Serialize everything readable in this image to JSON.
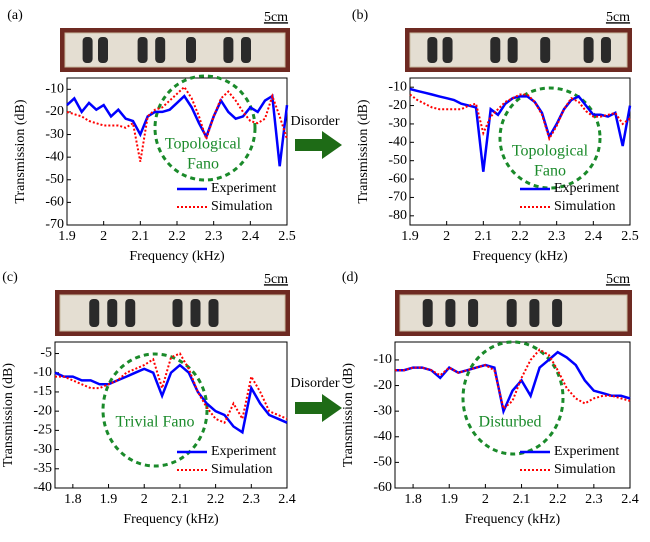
{
  "chart_data": [
    {
      "type": "line",
      "panel": "(a)",
      "scale_label": "5cm",
      "x_label": "Frequency (kHz)",
      "y_label": "Transmission (dB)",
      "annotation": [
        "Topological",
        "Fano"
      ],
      "legend": "lower right",
      "x": [
        1.9,
        1.92,
        1.94,
        1.96,
        1.98,
        2.0,
        2.02,
        2.04,
        2.06,
        2.08,
        2.1,
        2.12,
        2.14,
        2.16,
        2.18,
        2.2,
        2.22,
        2.24,
        2.26,
        2.28,
        2.3,
        2.32,
        2.34,
        2.36,
        2.38,
        2.4,
        2.42,
        2.44,
        2.46,
        2.48,
        2.5
      ],
      "series": [
        {
          "name": "Experiment",
          "color": "#0000ff",
          "values": [
            -17,
            -14,
            -20,
            -16,
            -19,
            -17,
            -22,
            -19,
            -23,
            -24,
            -30,
            -22,
            -20,
            -20,
            -19,
            -16,
            -13,
            -18,
            -25,
            -31,
            -22,
            -15,
            -20,
            -23,
            -22,
            -18,
            -20,
            -15,
            -13,
            -44,
            -17
          ]
        },
        {
          "name": "Simulation",
          "color": "#ff0000",
          "values": [
            -20,
            -21,
            -22,
            -24,
            -25,
            -26,
            -26,
            -26,
            -27,
            -25,
            -42,
            -22,
            -19,
            -18,
            -15,
            -12,
            -9,
            -14,
            -22,
            -32,
            -22,
            -14,
            -11,
            -15,
            -20,
            -24,
            -25,
            -23,
            -13,
            -22,
            -32
          ]
        }
      ],
      "xlim": [
        1.9,
        2.5
      ],
      "xticks": [
        1.9,
        2,
        2.1,
        2.2,
        2.3,
        2.4,
        2.5
      ],
      "ylim": [
        -70,
        -5
      ],
      "yticks": [
        -10,
        -20,
        -30,
        -40,
        -50,
        -60,
        -70
      ]
    },
    {
      "type": "line",
      "panel": "(b)",
      "scale_label": "5cm",
      "x_label": "Frequency (kHz)",
      "y_label": "Transmission (dB)",
      "annotation": [
        "Topological",
        "Fano"
      ],
      "legend": "lower right",
      "x": [
        1.9,
        1.92,
        1.94,
        1.96,
        1.98,
        2.0,
        2.02,
        2.04,
        2.06,
        2.08,
        2.1,
        2.12,
        2.14,
        2.16,
        2.18,
        2.2,
        2.22,
        2.24,
        2.26,
        2.28,
        2.3,
        2.32,
        2.34,
        2.36,
        2.38,
        2.4,
        2.42,
        2.44,
        2.46,
        2.48,
        2.5
      ],
      "series": [
        {
          "name": "Experiment",
          "color": "#0000ff",
          "values": [
            -11,
            -12,
            -13,
            -14,
            -15,
            -16,
            -17,
            -19,
            -20,
            -21,
            -56,
            -22,
            -25,
            -19,
            -16,
            -15,
            -15,
            -18,
            -24,
            -37,
            -30,
            -22,
            -17,
            -15,
            -20,
            -25,
            -25,
            -26,
            -24,
            -42,
            -20
          ]
        },
        {
          "name": "Simulation",
          "color": "#ff0000",
          "values": [
            -14,
            -17,
            -19,
            -21,
            -22,
            -22,
            -22,
            -22,
            -20,
            -19,
            -35,
            -26,
            -22,
            -18,
            -16,
            -14,
            -14,
            -18,
            -25,
            -38,
            -31,
            -22,
            -16,
            -18,
            -23,
            -26,
            -26,
            -25,
            -24,
            -30,
            -27
          ]
        }
      ],
      "xlim": [
        1.9,
        2.5
      ],
      "xticks": [
        1.9,
        2,
        2.1,
        2.2,
        2.3,
        2.4,
        2.5
      ],
      "ylim": [
        -85,
        -5
      ],
      "yticks": [
        -10,
        -20,
        -30,
        -40,
        -50,
        -60,
        -70,
        -80
      ]
    },
    {
      "type": "line",
      "panel": "(c)",
      "scale_label": "5cm",
      "x_label": "Frequency (kHz)",
      "y_label": "Transmission (dB)",
      "annotation": [
        "Trivial Fano"
      ],
      "legend": "lower right",
      "x": [
        1.75,
        1.775,
        1.8,
        1.825,
        1.85,
        1.875,
        1.9,
        1.925,
        1.95,
        1.975,
        2.0,
        2.025,
        2.05,
        2.075,
        2.1,
        2.125,
        2.15,
        2.175,
        2.2,
        2.225,
        2.25,
        2.275,
        2.3,
        2.325,
        2.35,
        2.375,
        2.4
      ],
      "series": [
        {
          "name": "Experiment",
          "color": "#0000ff",
          "values": [
            -10,
            -11,
            -11,
            -12,
            -12,
            -13,
            -13,
            -12,
            -11,
            -10,
            -9,
            -10,
            -16,
            -10,
            -8,
            -10,
            -15,
            -18,
            -20,
            -21,
            -24,
            -25.5,
            -14,
            -18,
            -21,
            -22,
            -23
          ]
        },
        {
          "name": "Simulation",
          "color": "#ff0000",
          "values": [
            -11,
            -11,
            -12,
            -13,
            -14,
            -14,
            -13,
            -12,
            -10,
            -9,
            -8,
            -6.5,
            -14,
            -6,
            -5,
            -9,
            -15,
            -19,
            -22,
            -23,
            -18,
            -22,
            -11,
            -15,
            -20,
            -21,
            -22
          ]
        }
      ],
      "xlim": [
        1.75,
        2.4
      ],
      "xticks": [
        1.8,
        1.9,
        2,
        2.1,
        2.2,
        2.3,
        2.4
      ],
      "ylim": [
        -40,
        -2
      ],
      "yticks": [
        -5,
        -10,
        -15,
        -20,
        -25,
        -30,
        -35,
        -40
      ]
    },
    {
      "type": "line",
      "panel": "(d)",
      "scale_label": "5cm",
      "x_label": "Frequency (kHz)",
      "y_label": "Transmission (dB)",
      "annotation": [
        "Disturbed"
      ],
      "legend": "lower right",
      "x": [
        1.75,
        1.775,
        1.8,
        1.825,
        1.85,
        1.875,
        1.9,
        1.925,
        1.95,
        1.975,
        2.0,
        2.025,
        2.05,
        2.075,
        2.1,
        2.125,
        2.15,
        2.175,
        2.2,
        2.225,
        2.25,
        2.275,
        2.3,
        2.325,
        2.35,
        2.375,
        2.4
      ],
      "series": [
        {
          "name": "Experiment",
          "color": "#0000ff",
          "values": [
            -14,
            -14,
            -13,
            -13,
            -14,
            -17,
            -13,
            -15,
            -14,
            -13,
            -12,
            -13,
            -30,
            -22,
            -18,
            -24,
            -13,
            -10,
            -7,
            -9,
            -12,
            -18,
            -22,
            -23,
            -24,
            -24,
            -25
          ]
        },
        {
          "name": "Simulation",
          "color": "#ff0000",
          "values": [
            -14,
            -14,
            -13,
            -13,
            -14,
            -16,
            -13,
            -15,
            -14,
            -13,
            -12,
            -14,
            -29,
            -26,
            -17,
            -10,
            -6,
            -8,
            -14,
            -21,
            -25,
            -27,
            -25,
            -24,
            -24,
            -25,
            -26
          ]
        }
      ],
      "xlim": [
        1.75,
        2.4
      ],
      "xticks": [
        1.8,
        1.9,
        2,
        2.1,
        2.2,
        2.3,
        2.4
      ],
      "ylim": [
        -60,
        -3
      ],
      "yticks": [
        -10,
        -20,
        -30,
        -40,
        -50,
        -60
      ]
    }
  ],
  "arrow_labels": [
    "Disorder",
    "Disorder"
  ]
}
